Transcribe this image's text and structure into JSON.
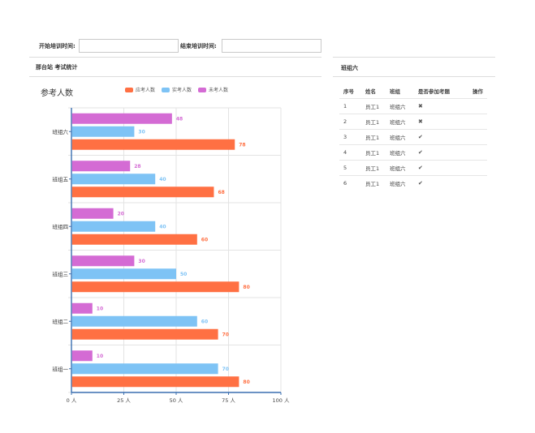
{
  "filters": {
    "start_label": "开始培训时间:",
    "end_label": "结束培训时间:",
    "start_value": "",
    "end_value": ""
  },
  "left_panel": {
    "breadcrumb": "那台站 考试统计"
  },
  "right_panel": {
    "title": "班组六",
    "columns": [
      "序号",
      "姓名",
      "班组",
      "是否参加考题",
      "操作"
    ],
    "rows": [
      {
        "index": "1",
        "name": "员工1",
        "group": "班组六",
        "status_icon": "cross-icon",
        "mark": "✖"
      },
      {
        "index": "2",
        "name": "员工1",
        "group": "班组六",
        "status_icon": "cross-icon",
        "mark": "✖"
      },
      {
        "index": "3",
        "name": "员工1",
        "group": "班组六",
        "status_icon": "check-icon",
        "mark": "✔"
      },
      {
        "index": "4",
        "name": "员工1",
        "group": "班组六",
        "status_icon": "check-icon",
        "mark": "✔"
      },
      {
        "index": "5",
        "name": "员工1",
        "group": "班组六",
        "status_icon": "check-icon",
        "mark": "✔"
      },
      {
        "index": "6",
        "name": "员工1",
        "group": "班组六",
        "status_icon": "check-icon",
        "mark": "✔"
      }
    ]
  },
  "chart_data": {
    "type": "bar",
    "orientation": "horizontal",
    "title": "参考人数",
    "xlabel": "",
    "ylabel": "",
    "xlim": [
      0,
      100
    ],
    "xticks": [
      0,
      25,
      50,
      75,
      100
    ],
    "xtick_labels": [
      "0 人",
      "25 人",
      "50 人",
      "75 人",
      "100 人"
    ],
    "grid": true,
    "legend_position": "top",
    "categories": [
      "班组六",
      "班组五",
      "班组四",
      "班组三",
      "班组二",
      "班组一"
    ],
    "series": [
      {
        "name": "未考人数",
        "color": "#d46bd4",
        "values": [
          48,
          28,
          20,
          30,
          10,
          10
        ]
      },
      {
        "name": "实考人数",
        "color": "#7ec3f5",
        "values": [
          30,
          40,
          40,
          50,
          60,
          70
        ]
      },
      {
        "name": "应考人数",
        "color": "#ff7043",
        "values": [
          78,
          68,
          60,
          80,
          70,
          80
        ]
      }
    ],
    "legend_order": [
      "应考人数",
      "实考人数",
      "未考人数"
    ]
  }
}
